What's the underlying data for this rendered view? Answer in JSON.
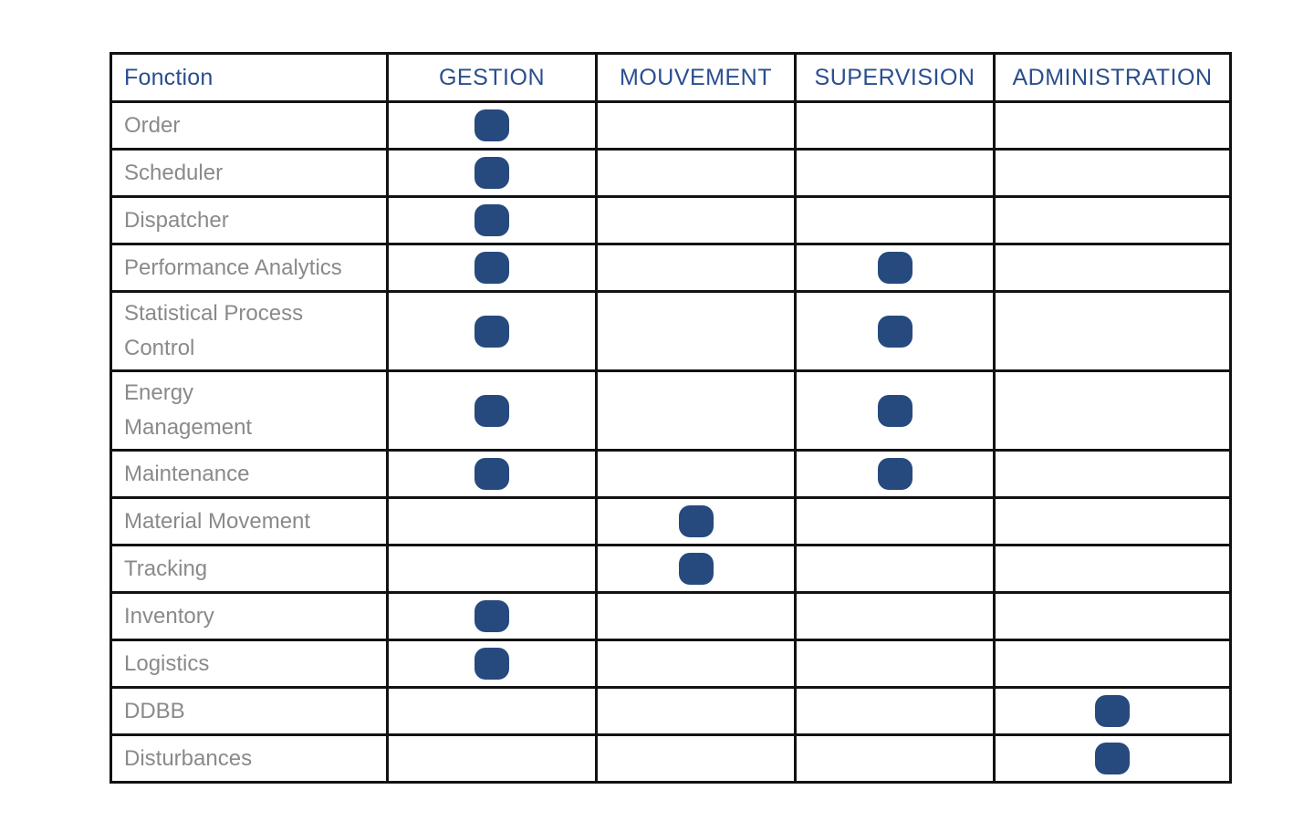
{
  "table": {
    "columns": [
      {
        "key": "fonction",
        "label": "Fonction"
      },
      {
        "key": "gestion",
        "label": "GESTION"
      },
      {
        "key": "mouvement",
        "label": "MOUVEMENT"
      },
      {
        "key": "supervision",
        "label": "SUPERVISION"
      },
      {
        "key": "administration",
        "label": "ADMINISTRATION"
      }
    ],
    "rows": [
      {
        "label": [
          "Order"
        ],
        "tall": false,
        "marks": [
          true,
          false,
          false,
          false
        ]
      },
      {
        "label": [
          "Scheduler"
        ],
        "tall": false,
        "marks": [
          true,
          false,
          false,
          false
        ]
      },
      {
        "label": [
          "Dispatcher"
        ],
        "tall": false,
        "marks": [
          true,
          false,
          false,
          false
        ]
      },
      {
        "label": [
          "Performance Analytics"
        ],
        "tall": false,
        "marks": [
          true,
          false,
          true,
          false
        ]
      },
      {
        "label": [
          "Statistical Process",
          "Control"
        ],
        "tall": true,
        "marks": [
          true,
          false,
          true,
          false
        ]
      },
      {
        "label": [
          "Energy",
          "Management"
        ],
        "tall": true,
        "marks": [
          true,
          false,
          true,
          false
        ]
      },
      {
        "label": [
          "Maintenance"
        ],
        "tall": false,
        "marks": [
          true,
          false,
          true,
          false
        ]
      },
      {
        "label": [
          "Material Movement"
        ],
        "tall": false,
        "marks": [
          false,
          true,
          false,
          false
        ]
      },
      {
        "label": [
          "Tracking"
        ],
        "tall": false,
        "marks": [
          false,
          true,
          false,
          false
        ]
      },
      {
        "label": [
          "Inventory"
        ],
        "tall": false,
        "marks": [
          true,
          false,
          false,
          false
        ]
      },
      {
        "label": [
          "Logistics"
        ],
        "tall": false,
        "marks": [
          true,
          false,
          false,
          false
        ]
      },
      {
        "label": [
          "DDBB"
        ],
        "tall": false,
        "marks": [
          false,
          false,
          false,
          true
        ]
      },
      {
        "label": [
          "Disturbances"
        ],
        "tall": false,
        "marks": [
          false,
          false,
          false,
          true
        ]
      }
    ]
  },
  "colors": {
    "background": "#FFFFFF",
    "grid": "#121212",
    "header_text": "#2A4E8E",
    "row_text": "#8A8A8A",
    "dot": "#264A7D"
  }
}
